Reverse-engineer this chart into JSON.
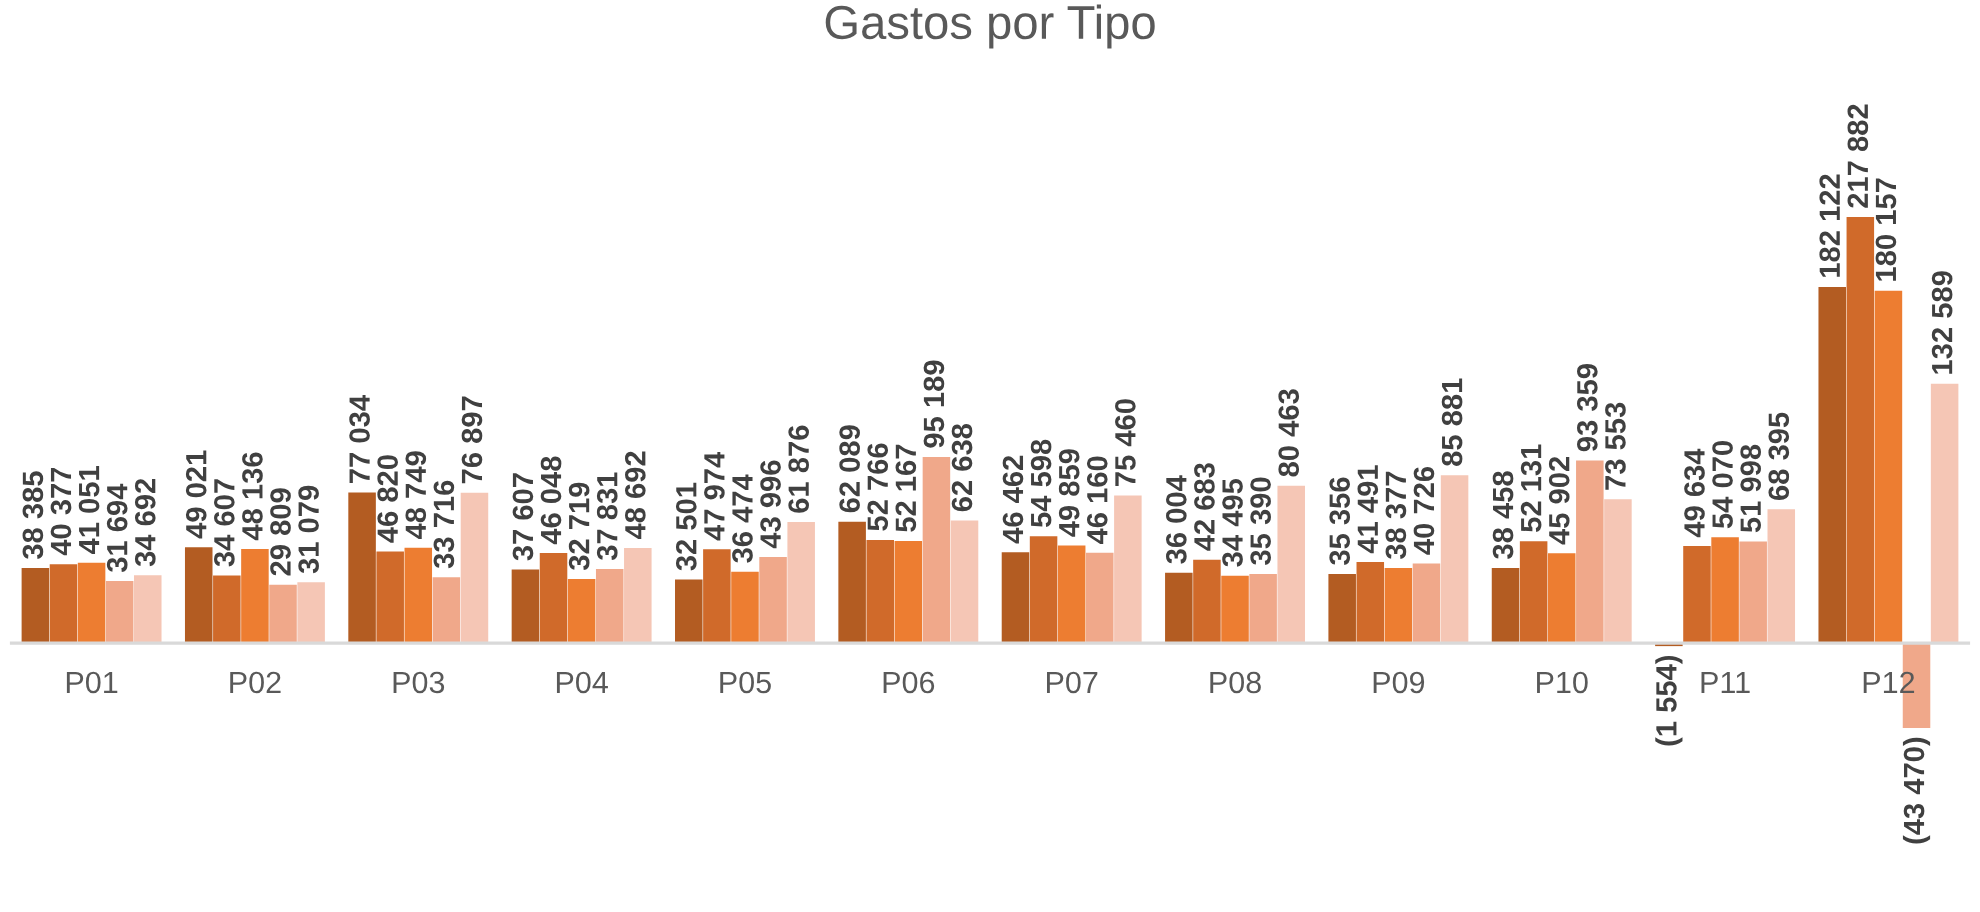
{
  "chart_data": {
    "type": "bar",
    "title": "Gastos por Tipo",
    "categories": [
      "P01",
      "P02",
      "P03",
      "P04",
      "P05",
      "P06",
      "P07",
      "P08",
      "P09",
      "P10",
      "P11",
      "P12"
    ],
    "series": [
      {
        "color": "#b35c22",
        "values": [
          38385,
          49021,
          77034,
          37607,
          32501,
          62089,
          46462,
          36004,
          35356,
          38458,
          -1554,
          182122
        ],
        "value_labels": [
          "38 385",
          "49 021",
          "77 034",
          "37 607",
          "32 501",
          "62 089",
          "46 462",
          "36 004",
          "35 356",
          "38 458",
          "(1 554)",
          "182 122"
        ]
      },
      {
        "color": "#d06a2a",
        "values": [
          40377,
          34607,
          46820,
          46048,
          47974,
          52766,
          54598,
          42683,
          41491,
          52131,
          49634,
          217882
        ],
        "value_labels": [
          "40 377",
          "34 607",
          "46 820",
          "46 048",
          "47 974",
          "52 766",
          "54 598",
          "42 683",
          "41 491",
          "52 131",
          "49 634",
          "217 882"
        ]
      },
      {
        "color": "#ed7d31",
        "values": [
          41051,
          48136,
          48749,
          32719,
          36474,
          52167,
          49859,
          34495,
          38377,
          45902,
          54070,
          180157
        ],
        "value_labels": [
          "41 051",
          "48 136",
          "48 749",
          "32 719",
          "36 474",
          "52 167",
          "49 859",
          "34 495",
          "38 377",
          "45 902",
          "54 070",
          "180 157"
        ]
      },
      {
        "color": "#f0a88a",
        "values": [
          31694,
          29809,
          33716,
          37831,
          43996,
          95189,
          46160,
          35390,
          40726,
          93359,
          51998,
          -43470
        ],
        "value_labels": [
          "31 694",
          "29 809",
          "33 716",
          "37 831",
          "43 996",
          "95 189",
          "46 160",
          "35 390",
          "40 726",
          "93 359",
          "51 998",
          "(43 470)"
        ]
      },
      {
        "color": "#f5c6b5",
        "values": [
          34692,
          31079,
          76897,
          48692,
          61876,
          62638,
          75460,
          80463,
          85881,
          73553,
          68395,
          132589
        ],
        "value_labels": [
          "34 692",
          "31 079",
          "76 897",
          "48 692",
          "61 876",
          "62 638",
          "75 460",
          "80 463",
          "85 881",
          "73 553",
          "68 395",
          "132 589"
        ]
      }
    ],
    "legend": false
  }
}
